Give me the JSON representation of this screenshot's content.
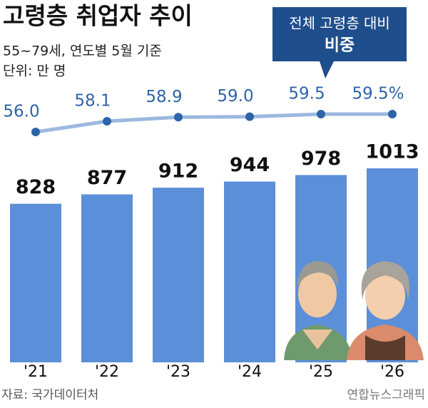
{
  "chart_data": {
    "type": "bar",
    "title": "고령층 취업자 추이",
    "subtitle": "55~79세, 연도별 5월 기준",
    "unit": "단위: 만 명",
    "annotation": {
      "line1": "전체 고령층 대비",
      "line2": "비중"
    },
    "categories": [
      "'21",
      "'22",
      "'23",
      "'24",
      "'25",
      "'26"
    ],
    "series": [
      {
        "type": "bar",
        "color": "#5b8fd9",
        "values": [
          828,
          877,
          912,
          944,
          978,
          1013
        ]
      },
      {
        "type": "line",
        "color": "#9bb9de",
        "marker_color": "#2e64a8",
        "values": [
          56.0,
          58.1,
          58.9,
          59.0,
          59.5,
          59.5
        ],
        "value_labels": [
          "56.0",
          "58.1",
          "58.9",
          "59.0",
          "59.5",
          "59.5%"
        ]
      }
    ],
    "source": "자료: 국가데이터처",
    "credit": "연합뉴스그래픽"
  }
}
